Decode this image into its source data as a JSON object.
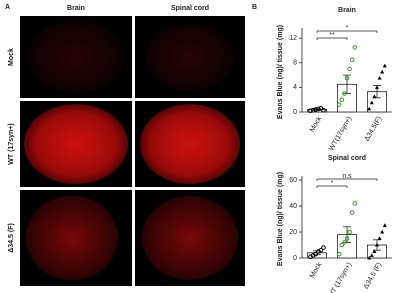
{
  "panel_a": {
    "label": "A",
    "columns": [
      "Brain",
      "Spinal cord"
    ],
    "rows": [
      "Mock",
      "WT (17syn+)",
      "Δ34.5 (F)"
    ]
  },
  "panel_b_label": "B",
  "chart_data": [
    {
      "type": "bar",
      "title": "Brain",
      "ylabel": "Evans Blue (ng)/ tissue (mg)",
      "categories": [
        "Mock",
        "WT(17syn+)",
        "Δ34.5(F)"
      ],
      "values": [
        0.4,
        4.5,
        3.3
      ],
      "errors": [
        0.1,
        1.5,
        1.0
      ],
      "points": [
        [
          0.2,
          0.3,
          0.4,
          0.5,
          0.6,
          0.3
        ],
        [
          1.2,
          2,
          3,
          5.5,
          7,
          8.5,
          10.5
        ],
        [
          0.5,
          1.5,
          2.5,
          4,
          5.5,
          6.5,
          7.5
        ]
      ],
      "point_colors": [
        "#000000",
        "#3a9a2a",
        "#000000"
      ],
      "point_markers": [
        "circle",
        "circle",
        "triangle"
      ],
      "annotations": [
        "**",
        "*"
      ],
      "ylim": [
        0,
        13
      ],
      "yticks": [
        0,
        4,
        8,
        12
      ]
    },
    {
      "type": "bar",
      "title": "Spinal cord",
      "ylabel": "Evans Blue (ng)/ tissue (mg)",
      "categories": [
        "Mock",
        "WT (17syn+)",
        "Δ34.5 (F)"
      ],
      "values": [
        4,
        18,
        10
      ],
      "errors": [
        1.5,
        6,
        4
      ],
      "points": [
        [
          1,
          2,
          3,
          5,
          6,
          8
        ],
        [
          3,
          10,
          12,
          15,
          20,
          35,
          42
        ],
        [
          0,
          2,
          5,
          10,
          15,
          20,
          25
        ]
      ],
      "point_colors": [
        "#000000",
        "#3a9a2a",
        "#000000"
      ],
      "point_markers": [
        "circle",
        "circle",
        "triangle"
      ],
      "annotations": [
        "*",
        "n.s"
      ],
      "ylim": [
        0,
        60
      ],
      "yticks": [
        0,
        20,
        40,
        60
      ]
    }
  ]
}
